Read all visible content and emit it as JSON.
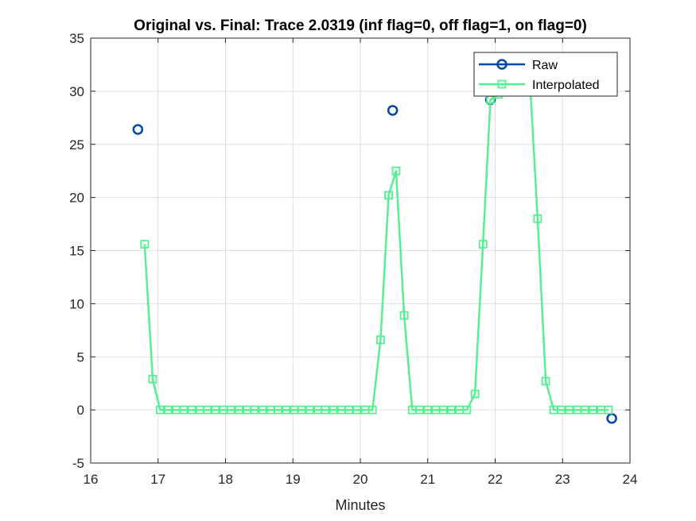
{
  "chart_data": {
    "type": "line",
    "title": "Original vs. Final: Trace 2.0319 (inf flag=0, off flag=1, on flag=0)",
    "xlabel": "Minutes",
    "ylabel": "",
    "xlim": [
      16,
      24
    ],
    "ylim": [
      -5,
      35
    ],
    "xticks": [
      "16",
      "17",
      "18",
      "19",
      "20",
      "21",
      "22",
      "23",
      "24"
    ],
    "yticks": [
      "-5",
      "0",
      "5",
      "10",
      "15",
      "20",
      "25",
      "30",
      "35"
    ],
    "grid": true,
    "legend_position": "top-right",
    "series": [
      {
        "name": "Raw",
        "color": "#0047ab",
        "marker": "circle",
        "line": false,
        "x": [
          16.7,
          20.48,
          21.93,
          23.73
        ],
        "y": [
          26.4,
          28.2,
          29.2,
          -0.8
        ]
      },
      {
        "name": "Interpolated",
        "color": "#55f08f",
        "marker": "square",
        "line": true,
        "x": [
          16.8,
          16.92,
          17.03,
          17.15,
          17.27,
          17.38,
          17.5,
          17.62,
          17.73,
          17.85,
          17.97,
          18.08,
          18.2,
          18.32,
          18.43,
          18.55,
          18.67,
          18.78,
          18.9,
          19.02,
          19.13,
          19.25,
          19.37,
          19.48,
          19.6,
          19.72,
          19.83,
          19.95,
          20.07,
          20.18,
          20.3,
          20.42,
          20.53,
          20.65,
          20.77,
          20.88,
          21.0,
          21.12,
          21.23,
          21.35,
          21.47,
          21.58,
          21.7,
          21.82,
          21.93,
          22.05,
          22.17,
          22.28,
          22.4,
          22.52,
          22.63,
          22.75,
          22.87,
          22.98,
          23.1,
          23.22,
          23.33,
          23.45,
          23.57,
          23.68
        ],
        "y": [
          15.6,
          2.9,
          0,
          0,
          0,
          0,
          0,
          0,
          0,
          0,
          0,
          0,
          0,
          0,
          0,
          0,
          0,
          0,
          0,
          0,
          0,
          0,
          0,
          0,
          0,
          0,
          0,
          0,
          0,
          0,
          6.6,
          20.2,
          22.5,
          8.9,
          0,
          0,
          0,
          0,
          0,
          0,
          0,
          0,
          1.5,
          15.6,
          29.2,
          29.7,
          30.5,
          31,
          30.8,
          30.5,
          18.0,
          2.7,
          0,
          0,
          0,
          0,
          0,
          0,
          0,
          0
        ]
      }
    ]
  }
}
